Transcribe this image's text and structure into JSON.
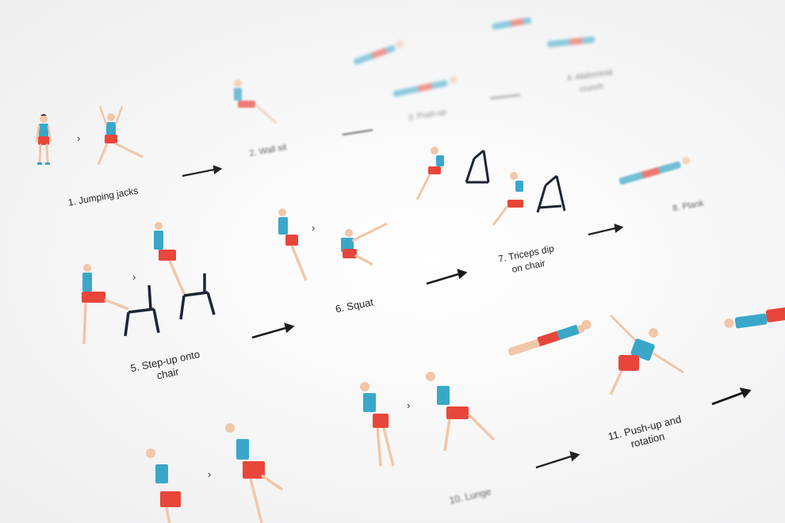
{
  "image": {
    "subject": "printed workout exercise chart",
    "colors": {
      "paper": "#f6f6f7",
      "shirt": "#3aa7c9",
      "shorts": "#e8463a",
      "skin": "#f2c6a6",
      "ink": "#1a1a1a"
    }
  },
  "labels": {
    "l1": "1. Jumping jacks",
    "l2": "2. Wall sit",
    "l3": "3. Push-up",
    "l4": "4. Abdominal crunch",
    "l5": "5. Step-up onto\nchair",
    "l6": "6. Squat",
    "l7": "7. Triceps dip\non chair",
    "l8": "8. Plank",
    "l10": "10. Lunge",
    "l11": "11. Push-up and\nrotation"
  },
  "arrow_glyph": "→",
  "sequence_glyph": "›"
}
